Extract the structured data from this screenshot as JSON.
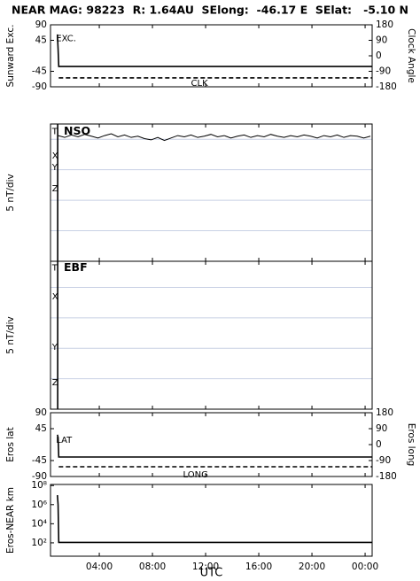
{
  "chart_data": [
    {
      "type": "line",
      "title": "NEAR MAG: 98223  R: 1.64AU  SElong:  -46.17 E  SElat:   -5.10 N",
      "ylabel": "Sunward Exc.",
      "y2label": "Clock Angle",
      "xlim": [
        0.33,
        24.53
      ],
      "ylim": [
        -90,
        90
      ],
      "yticks": [
        90,
        45,
        -45,
        -90
      ],
      "y2lim": [
        -180,
        180
      ],
      "y2ticks": [
        180,
        90,
        0,
        -90,
        -180
      ],
      "series": [
        {
          "x": [
            0.85,
            0.9,
            0.95,
            24.53
          ],
          "values": [
            62,
            20,
            -31,
            -31
          ],
          "color": "#000000"
        },
        {
          "x": [
            0.95,
            24.53
          ],
          "values": [
            -128,
            -128
          ],
          "axis": "y2",
          "dash": true,
          "color": "#000000"
        }
      ],
      "annotations": [
        {
          "text": "EXC.",
          "x": 0.75,
          "y": 50
        },
        {
          "text": "CLK",
          "x": 10.9,
          "y": -80
        }
      ]
    },
    {
      "type": "line",
      "ylabel": "5 nT/div",
      "xlim": [
        0.33,
        24.53
      ],
      "ylim": [
        0,
        22.5
      ],
      "gridlines": [
        5,
        10,
        15,
        20
      ],
      "series": [
        {
          "x": [
            0.87,
            0.87
          ],
          "values": [
            22.5,
            0
          ],
          "color": "#000000"
        },
        {
          "x": [
            0.9,
            1.4,
            1.9,
            2.4,
            2.9,
            3.4,
            3.9,
            4.4,
            4.9,
            5.4,
            5.9,
            6.4,
            6.9,
            7.4,
            7.9,
            8.4,
            8.9,
            9.4,
            9.9,
            10.4,
            10.9,
            11.4,
            11.9,
            12.4,
            12.9,
            13.4,
            13.9,
            14.4,
            14.9,
            15.4,
            15.9,
            16.4,
            16.9,
            17.4,
            17.9,
            18.4,
            18.9,
            19.4,
            19.9,
            20.4,
            20.9,
            21.4,
            21.9,
            22.4,
            22.9,
            23.4,
            23.9,
            24.4
          ],
          "values": [
            20.6,
            20.3,
            20.7,
            20.4,
            20.8,
            20.5,
            20.2,
            20.6,
            20.9,
            20.4,
            20.7,
            20.3,
            20.5,
            20.1,
            19.9,
            20.3,
            19.8,
            20.2,
            20.6,
            20.4,
            20.7,
            20.3,
            20.5,
            20.8,
            20.4,
            20.6,
            20.2,
            20.5,
            20.7,
            20.3,
            20.6,
            20.4,
            20.8,
            20.5,
            20.3,
            20.6,
            20.4,
            20.7,
            20.5,
            20.2,
            20.6,
            20.4,
            20.7,
            20.3,
            20.6,
            20.5,
            20.2,
            20.5
          ],
          "color": "#000000"
        }
      ],
      "annotations": [
        {
          "text": "T",
          "x": 0.45,
          "y": 21.3
        },
        {
          "text": "NSO",
          "x": 1.33,
          "y": 21.3,
          "bold": true
        },
        {
          "text": "X",
          "x": 0.45,
          "y": 17.3
        },
        {
          "text": "Y",
          "x": 0.45,
          "y": 15.4
        },
        {
          "text": "Z",
          "x": 0.45,
          "y": 11.9
        }
      ]
    },
    {
      "type": "line",
      "ylabel": "5 nT/div",
      "xlim": [
        0.33,
        24.53
      ],
      "ylim": [
        0,
        24.3
      ],
      "gridlines": [
        5,
        10,
        15,
        20
      ],
      "series": [
        {
          "x": [
            0.87,
            0.87
          ],
          "values": [
            24.3,
            0
          ],
          "color": "#000000"
        }
      ],
      "annotations": [
        {
          "text": "T",
          "x": 0.45,
          "y": 23.2
        },
        {
          "text": "EBF",
          "x": 1.33,
          "y": 23.2,
          "bold": true
        },
        {
          "text": "X",
          "x": 0.45,
          "y": 18.5
        },
        {
          "text": "Y",
          "x": 0.45,
          "y": 10.2
        },
        {
          "text": "Z",
          "x": 0.45,
          "y": 4.4
        }
      ]
    },
    {
      "type": "line",
      "ylabel": "Eros lat",
      "y2label": "Eros long",
      "xlim": [
        0.33,
        24.53
      ],
      "ylim": [
        -90,
        90
      ],
      "yticks": [
        90,
        45,
        -45,
        -90
      ],
      "y2lim": [
        -180,
        180
      ],
      "y2ticks": [
        180,
        90,
        0,
        -90,
        -180
      ],
      "series": [
        {
          "x": [
            0.85,
            0.9,
            0.95,
            24.53
          ],
          "values": [
            28,
            20,
            -35,
            -35
          ],
          "color": "#000000"
        },
        {
          "x": [
            0.95,
            24.53
          ],
          "values": [
            -125,
            -125
          ],
          "axis": "y2",
          "dash": true,
          "color": "#000000"
        }
      ],
      "annotations": [
        {
          "text": "LAT",
          "x": 0.75,
          "y": 13
        },
        {
          "text": "LONG",
          "x": 10.3,
          "y": -85
        }
      ]
    },
    {
      "type": "line",
      "ylabel": "Eros-NEAR km",
      "xlabel": "UTC",
      "log": true,
      "xlim": [
        0.33,
        24.53
      ],
      "ylim": [
        4,
        130000000
      ],
      "yticks": [
        {
          "value": 100,
          "label": "10²"
        },
        {
          "value": 10000,
          "label": "10⁴"
        },
        {
          "value": 1000000,
          "label": "10⁶"
        },
        {
          "value": 100000000,
          "label": "10⁸"
        }
      ],
      "xticks": [
        {
          "value": 0,
          "label": "00:00"
        },
        {
          "value": 4,
          "label": "04:00"
        },
        {
          "value": 8,
          "label": "08:00"
        },
        {
          "value": 12,
          "label": "12:00"
        },
        {
          "value": 16,
          "label": "16:00"
        },
        {
          "value": 20,
          "label": "20:00"
        },
        {
          "value": 24,
          "label": "00:00"
        }
      ],
      "series": [
        {
          "x": [
            0.85,
            0.9,
            0.95,
            24.53
          ],
          "values": [
            10000000,
            1000000,
            110,
            110
          ],
          "color": "#000000"
        }
      ]
    }
  ]
}
